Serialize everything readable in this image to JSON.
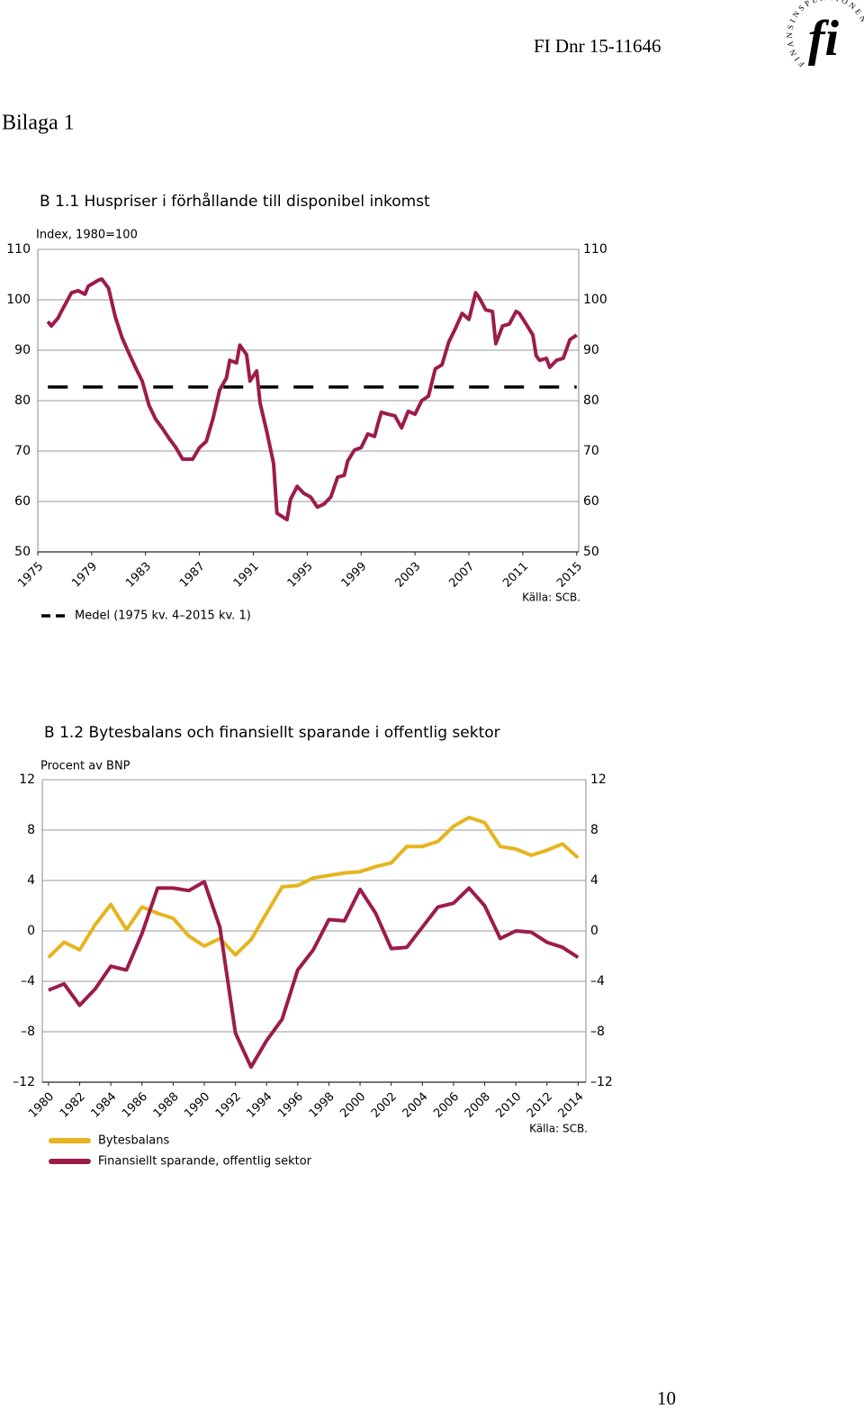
{
  "header": {
    "dnr": "FI Dnr 15-11646",
    "logo_text": "FINANSINSPEKTIONEN",
    "logo_mark": "fi"
  },
  "heading": "Bilaga 1",
  "chart_data": [
    {
      "type": "line",
      "title": "B 1.1 Huspriser i förhållande till disponibel inkomst",
      "y_label": "Index, 1980=100",
      "source": "Källa: SCB.",
      "x": [
        1975.75,
        1976,
        1976.5,
        1976.75,
        1977.5,
        1978,
        1978.5,
        1978.75,
        1979.5,
        1979.75,
        1980.25,
        1980.75,
        1981.25,
        1981.75,
        1982.25,
        1982.75,
        1983.25,
        1983.75,
        1984.25,
        1984.75,
        1985.25,
        1985.75,
        1986.5,
        1987,
        1987.5,
        1988,
        1988.5,
        1989,
        1989.25,
        1989.75,
        1990,
        1990.5,
        1990.75,
        1991.25,
        1991.5,
        1992,
        1992.5,
        1992.75,
        1993.5,
        1993.75,
        1994.25,
        1994.75,
        1995.25,
        1995.75,
        1996.25,
        1996.75,
        1997.25,
        1997.75,
        1998,
        1998.5,
        1999,
        1999.5,
        2000,
        2000.25,
        2000.5,
        2001,
        2001.5,
        2002,
        2002.5,
        2003,
        2003.5,
        2004,
        2004.5,
        2005,
        2005.5,
        2006,
        2006.5,
        2007,
        2007.5,
        2007.75,
        2008.25,
        2008.75,
        2009,
        2009.5,
        2010,
        2010.5,
        2010.75,
        2011.25,
        2011.75,
        2012,
        2012.25,
        2012.75,
        2013,
        2013.5,
        2014,
        2014.5,
        2015
      ],
      "series": [
        {
          "name": "Huspriser",
          "color": "#9c1c4c",
          "values": [
            95.7,
            94.8,
            96.4,
            97.7,
            101.4,
            101.8,
            101.1,
            102.7,
            103.9,
            104.1,
            102.3,
            96.6,
            92.5,
            89.5,
            86.6,
            83.9,
            79.1,
            76.3,
            74.5,
            72.5,
            70.7,
            68.4,
            68.4,
            70.7,
            71.9,
            76.4,
            82.1,
            84.5,
            88.0,
            87.5,
            91.0,
            89.1,
            83.9,
            85.9,
            79.5,
            73.8,
            67.5,
            57.7,
            56.4,
            60.4,
            63.0,
            61.6,
            60.9,
            58.9,
            59.5,
            60.9,
            64.8,
            65.2,
            68.0,
            70.2,
            70.7,
            73.4,
            72.9,
            75.5,
            77.7,
            77.3,
            77.0,
            74.6,
            77.9,
            77.3,
            80.0,
            80.9,
            86.3,
            87.1,
            91.6,
            94.3,
            97.3,
            96.1,
            101.4,
            100.5,
            98.0,
            97.7,
            91.3,
            94.8,
            95.2,
            97.7,
            97.3,
            95.2,
            93.0,
            88.9,
            88.0,
            88.4,
            86.6,
            88.0,
            88.4,
            92.1,
            93.0
          ]
        }
      ],
      "reference_line": {
        "name": "Medel (1975 kv. 4–2015 kv. 1)",
        "value": 82.7,
        "color": "#000000",
        "dashed": true
      },
      "xlim": [
        1975,
        2015.15
      ],
      "xticks": [
        1975,
        1979,
        1983,
        1987,
        1991,
        1995,
        1999,
        2003,
        2007,
        2011,
        2015
      ],
      "ylim": [
        50,
        110
      ],
      "yticks": [
        110,
        100,
        90,
        80,
        70,
        60,
        50
      ],
      "grid": true,
      "right_axis_labels": true
    },
    {
      "type": "line",
      "title": "B 1.2 Bytesbalans och finansiellt sparande i offentlig sektor",
      "y_label": "Procent av BNP",
      "source": "Källa: SCB.",
      "x": [
        1980,
        1981,
        1982,
        1983,
        1984,
        1985,
        1986,
        1987,
        1988,
        1989,
        1990,
        1991,
        1992,
        1993,
        1994,
        1995,
        1996,
        1997,
        1998,
        1999,
        2000,
        2001,
        2002,
        2003,
        2004,
        2005,
        2006,
        2007,
        2008,
        2009,
        2010,
        2011,
        2012,
        2013,
        2014
      ],
      "series": [
        {
          "name": "Bytesbalans",
          "color": "#e6b41e",
          "values": [
            -2.1,
            -0.9,
            -1.5,
            0.5,
            2.1,
            0.1,
            1.9,
            1.4,
            1.0,
            -0.4,
            -1.2,
            -0.6,
            -1.9,
            -0.7,
            1.4,
            3.5,
            3.6,
            4.2,
            4.4,
            4.6,
            4.7,
            5.1,
            5.4,
            6.7,
            6.7,
            7.1,
            8.3,
            9.0,
            8.6,
            6.7,
            6.5,
            6.0,
            6.4,
            6.9,
            5.8
          ]
        },
        {
          "name": "Finansiellt sparande, offentlig sektor",
          "color": "#9c1c4c",
          "values": [
            -4.7,
            -4.2,
            -5.9,
            -4.6,
            -2.8,
            -3.1,
            -0.2,
            3.4,
            3.4,
            3.2,
            3.9,
            0.3,
            -8.1,
            -10.8,
            -8.7,
            -7.0,
            -3.1,
            -1.5,
            0.9,
            0.8,
            3.3,
            1.4,
            -1.4,
            -1.3,
            0.3,
            1.9,
            2.2,
            3.4,
            2.0,
            -0.6,
            0.0,
            -0.1,
            -0.9,
            -1.3,
            -2.1
          ]
        }
      ],
      "xlim": [
        1979.6,
        2014.5
      ],
      "xticks": [
        1980,
        1982,
        1984,
        1986,
        1988,
        1990,
        1992,
        1994,
        1996,
        1998,
        2000,
        2002,
        2004,
        2006,
        2008,
        2010,
        2012,
        2014
      ],
      "ylim": [
        -12,
        12
      ],
      "yticks": [
        12,
        8,
        4,
        0,
        {
          "value": -4,
          "label": "–4"
        },
        {
          "value": -8,
          "label": "–8"
        },
        {
          "value": -12,
          "label": "–12"
        }
      ],
      "grid": true,
      "right_axis_labels": true
    }
  ],
  "page_number": "10"
}
